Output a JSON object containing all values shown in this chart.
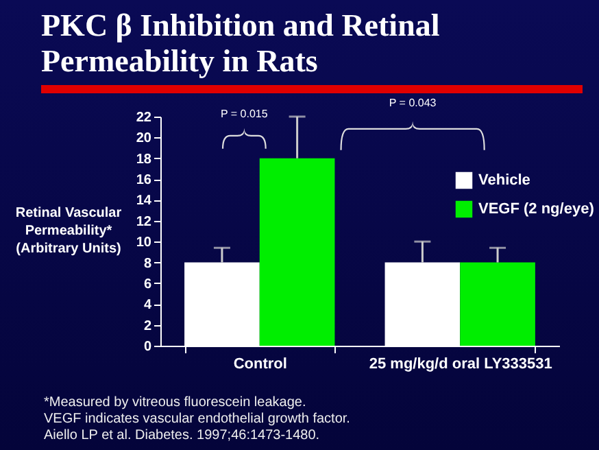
{
  "chart_data": {
    "type": "bar",
    "title": "PKC β Inhibition and Retinal Permeability in Rats",
    "ylabel": "Retinal Vascular Permeability* (Arbitrary Units)",
    "categories": [
      "Control",
      "25 mg/kg/d oral LY333531"
    ],
    "series": [
      {
        "name": "Vehicle",
        "color": "#ffffff",
        "values": [
          8,
          8
        ],
        "errors": [
          [
            8,
            9.4
          ],
          [
            8,
            10
          ]
        ]
      },
      {
        "name": "VEGF (2 ng/eye)",
        "color": "#00ee00",
        "values": [
          18,
          8
        ],
        "errors": [
          [
            18,
            22
          ],
          [
            8,
            9.4
          ]
        ]
      }
    ],
    "ylim": [
      0,
      22
    ],
    "yticks": [
      0,
      2,
      4,
      6,
      8,
      10,
      12,
      14,
      16,
      18,
      20,
      22
    ],
    "legend": "right",
    "grid": false,
    "annotations": [
      "P = 0.015",
      "P = 0.043",
      "*Measured by vitreous fluorescein leakage.",
      "VEGF indicates vascular endothelial growth factor.",
      "Aiello LP et al. Diabetes. 1997;46:1473-1480."
    ]
  }
}
